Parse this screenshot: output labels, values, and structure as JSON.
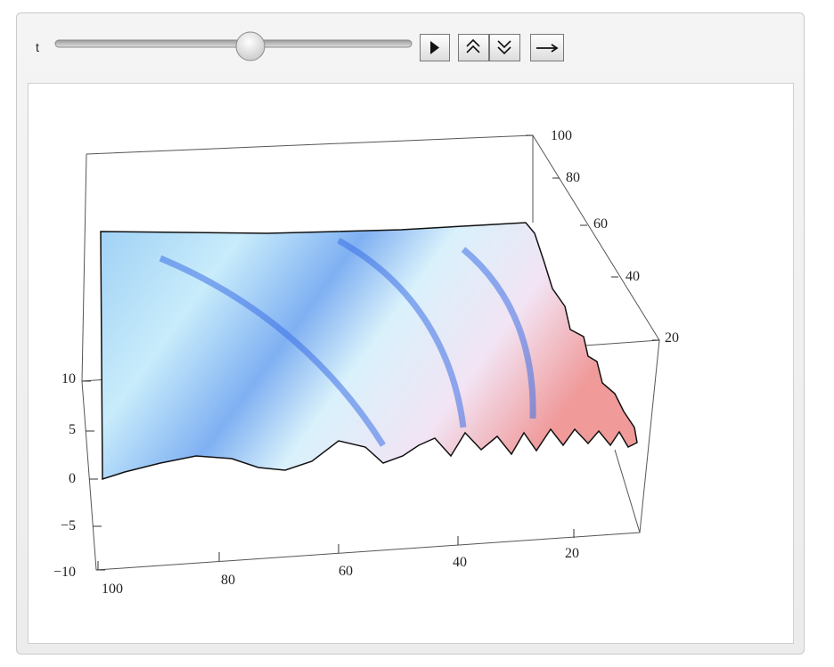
{
  "controls": {
    "label": "t"
  },
  "plot": {
    "z_ticks": [
      "10",
      "5",
      "0",
      "−5",
      "−10"
    ],
    "x_ticks": [
      "100",
      "80",
      "60",
      "40",
      "20"
    ],
    "y_ticks": [
      "100",
      "80",
      "60",
      "40",
      "20"
    ]
  }
}
